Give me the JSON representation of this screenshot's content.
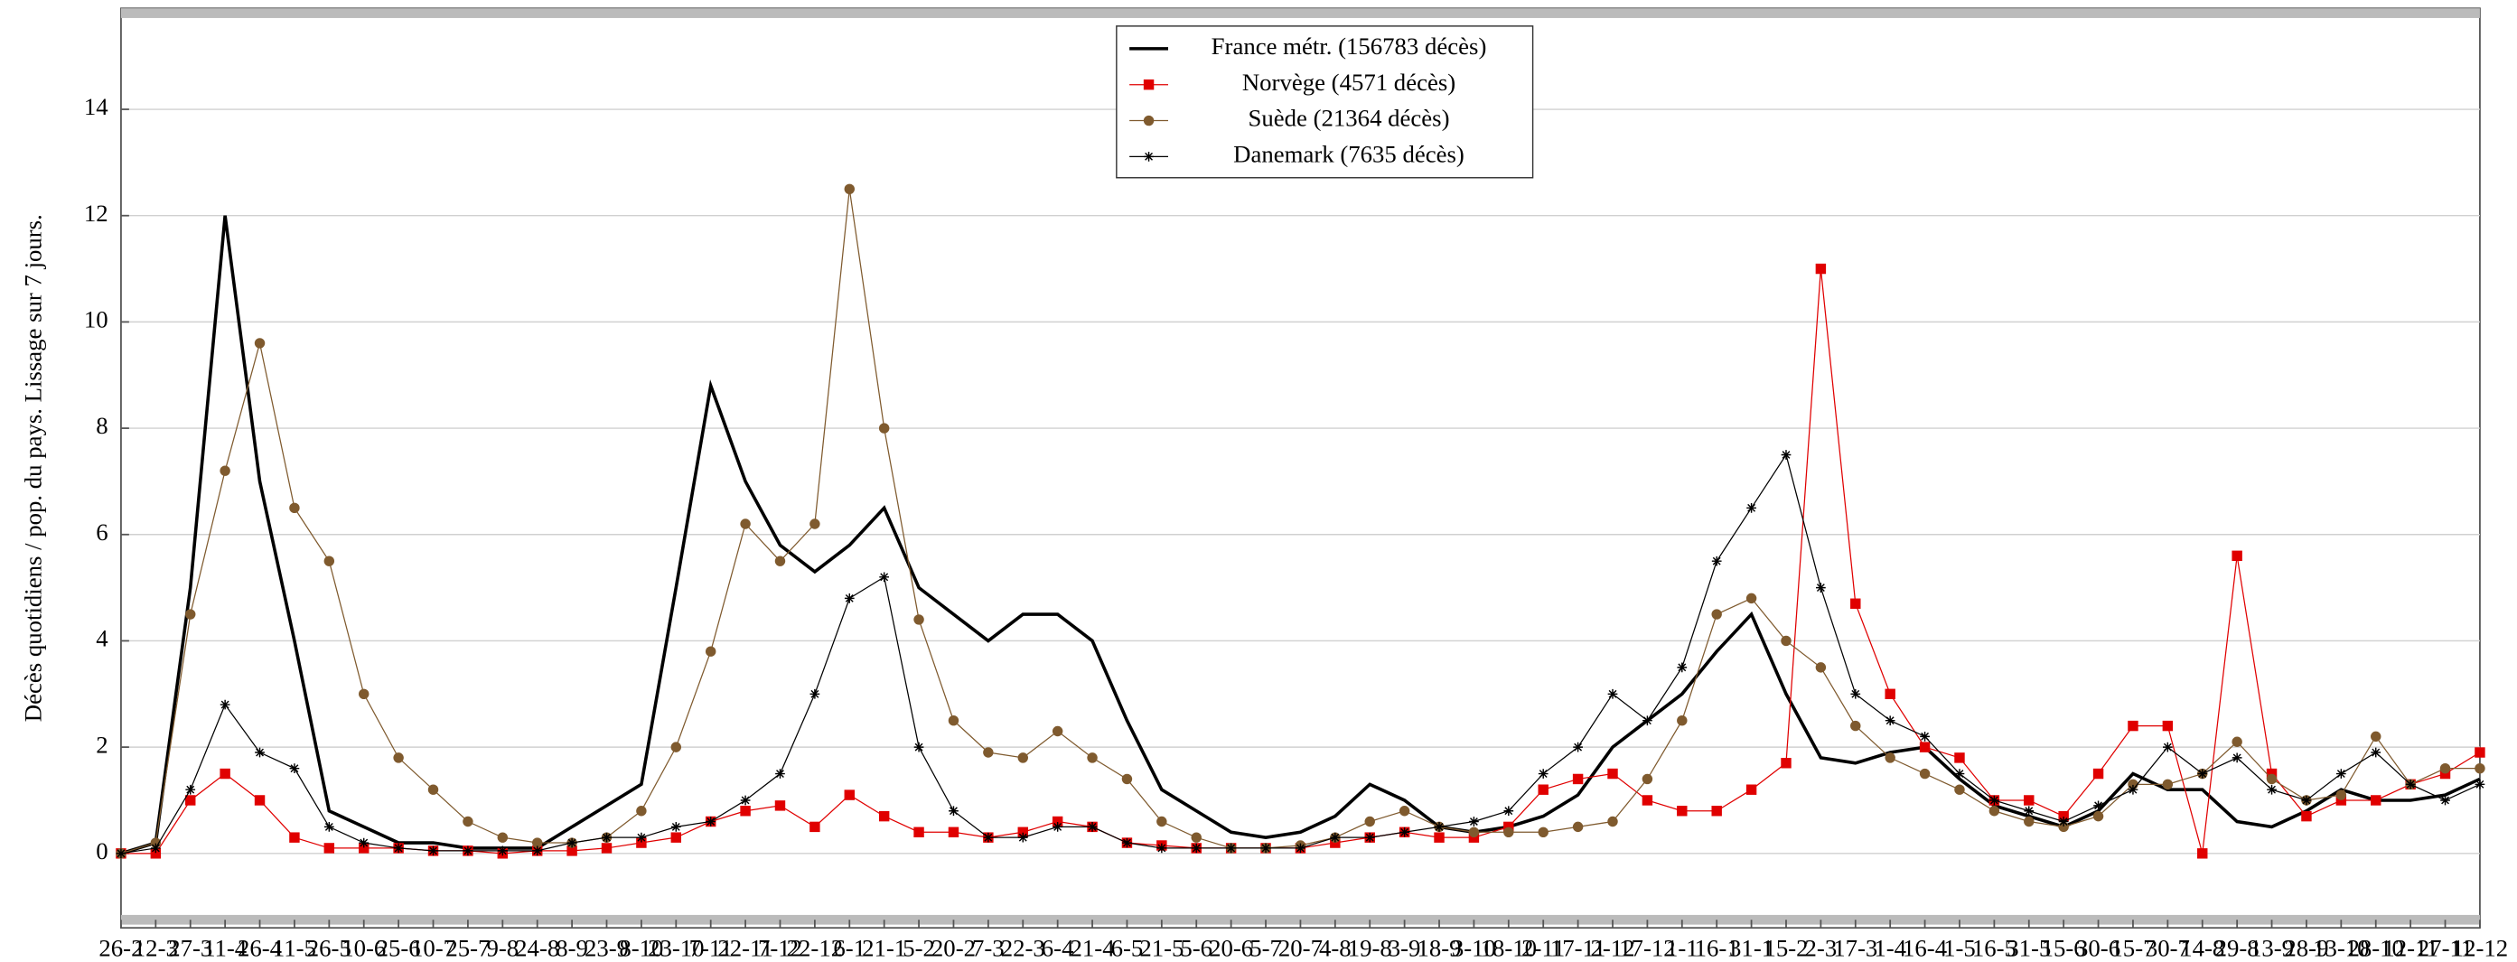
{
  "chart_data": {
    "type": "line",
    "ylabel": "Décès quotidiens / pop. du pays. Lissage sur 7 jours.",
    "categories": [
      "26-2",
      "12-3",
      "27-3",
      "11-4",
      "26-4",
      "11-5",
      "26-5",
      "10-6",
      "25-6",
      "10-7",
      "25-7",
      "9-8",
      "24-8",
      "8-9",
      "23-9",
      "8-10",
      "23-10",
      "7-11",
      "22-11",
      "7-12",
      "22-12",
      "6-1",
      "21-1",
      "5-2",
      "20-2",
      "7-3",
      "22-3",
      "6-4",
      "21-4",
      "6-5",
      "21-5",
      "5-6",
      "20-6",
      "5-7",
      "20-7",
      "4-8",
      "19-8",
      "3-9",
      "18-9",
      "3-10",
      "18-10",
      "2-11",
      "17-11",
      "2-12",
      "17-12",
      "1-1",
      "16-1",
      "31-1",
      "15-2",
      "2-3",
      "17-3",
      "1-4",
      "16-4",
      "1-5",
      "16-5",
      "31-5",
      "15-6",
      "30-6",
      "15-7",
      "30-7",
      "14-8",
      "29-8",
      "13-9",
      "28-9",
      "13-10",
      "28-10",
      "12-11",
      "27-11",
      "12-12"
    ],
    "series": [
      {
        "name": "France métr. (156783 décès)",
        "color": "#000000",
        "marker": "none",
        "values": [
          0,
          0.2,
          5,
          12,
          7,
          4,
          0.8,
          0.5,
          0.2,
          0.2,
          0.1,
          0.1,
          0.1,
          0.5,
          0.9,
          1.3,
          5,
          8.8,
          7,
          5.8,
          5.3,
          5.8,
          6.5,
          5,
          4.5,
          4,
          4.5,
          4.5,
          4,
          2.5,
          1.2,
          0.8,
          0.4,
          0.3,
          0.4,
          0.7,
          1.3,
          1,
          0.5,
          0.4,
          0.5,
          0.7,
          1.1,
          2,
          2.5,
          3,
          3.8,
          4.5,
          3,
          1.8,
          1.7,
          1.9,
          2,
          1.4,
          0.9,
          0.7,
          0.5,
          0.8,
          1.5,
          1.2,
          1.2,
          0.6,
          0.5,
          0.8,
          1.2,
          1,
          1,
          1.1,
          1.4
        ]
      },
      {
        "name": "Norvège (4571 décès)",
        "color": "#e00000",
        "marker": "square",
        "values": [
          0,
          0,
          1,
          1.5,
          1,
          0.3,
          0.1,
          0.1,
          0.1,
          0.05,
          0.05,
          0,
          0.05,
          0.05,
          0.1,
          0.2,
          0.3,
          0.6,
          0.8,
          0.9,
          0.5,
          1.1,
          0.7,
          0.4,
          0.4,
          0.3,
          0.4,
          0.6,
          0.5,
          0.2,
          0.15,
          0.1,
          0.1,
          0.1,
          0.1,
          0.2,
          0.3,
          0.4,
          0.3,
          0.3,
          0.5,
          1.2,
          1.4,
          1.5,
          1,
          0.8,
          0.8,
          1.2,
          1.7,
          11,
          4.7,
          3,
          2,
          1.8,
          1,
          1,
          0.7,
          1.5,
          2.4,
          2.4,
          0,
          5.6,
          1.5,
          0.7,
          1,
          1,
          1.3,
          1.5,
          1.9
        ]
      },
      {
        "name": "Suède (21364 décès)",
        "color": "#7f5a2e",
        "marker": "circle",
        "values": [
          0,
          0.2,
          4.5,
          7.2,
          9.6,
          6.5,
          5.5,
          3,
          1.8,
          1.2,
          0.6,
          0.3,
          0.2,
          0.2,
          0.3,
          0.8,
          2,
          3.8,
          6.2,
          5.5,
          6.2,
          12.5,
          8,
          4.4,
          2.5,
          1.9,
          1.8,
          2.3,
          1.8,
          1.4,
          0.6,
          0.3,
          0.1,
          0.1,
          0.15,
          0.3,
          0.6,
          0.8,
          0.5,
          0.4,
          0.4,
          0.4,
          0.5,
          0.6,
          1.4,
          2.5,
          4.5,
          4.8,
          4,
          3.5,
          2.4,
          1.8,
          1.5,
          1.2,
          0.8,
          0.6,
          0.5,
          0.7,
          1.3,
          1.3,
          1.5,
          2.1,
          1.4,
          1,
          1.1,
          2.2,
          1.3,
          1.6,
          1.6
        ]
      },
      {
        "name": "Danemark (7635 décès)",
        "color": "#000000",
        "marker": "star",
        "values": [
          0,
          0.1,
          1.2,
          2.8,
          1.9,
          1.6,
          0.5,
          0.2,
          0.1,
          0.05,
          0.05,
          0.05,
          0.05,
          0.2,
          0.3,
          0.3,
          0.5,
          0.6,
          1,
          1.5,
          3,
          4.8,
          5.2,
          2,
          0.8,
          0.3,
          0.3,
          0.5,
          0.5,
          0.2,
          0.1,
          0.1,
          0.1,
          0.1,
          0.1,
          0.3,
          0.3,
          0.4,
          0.5,
          0.6,
          0.8,
          1.5,
          2,
          3,
          2.5,
          3.5,
          5.5,
          6.5,
          7.5,
          5,
          3,
          2.5,
          2.2,
          1.5,
          1,
          0.8,
          0.6,
          0.9,
          1.2,
          2,
          1.5,
          1.8,
          1.2,
          1,
          1.5,
          1.9,
          1.3,
          1,
          1.3
        ]
      }
    ],
    "ylim": [
      -1.4,
      15.9
    ],
    "yticks": [
      0,
      2,
      4,
      6,
      8,
      10,
      12,
      14
    ],
    "grid": true,
    "legend": "upper center"
  }
}
